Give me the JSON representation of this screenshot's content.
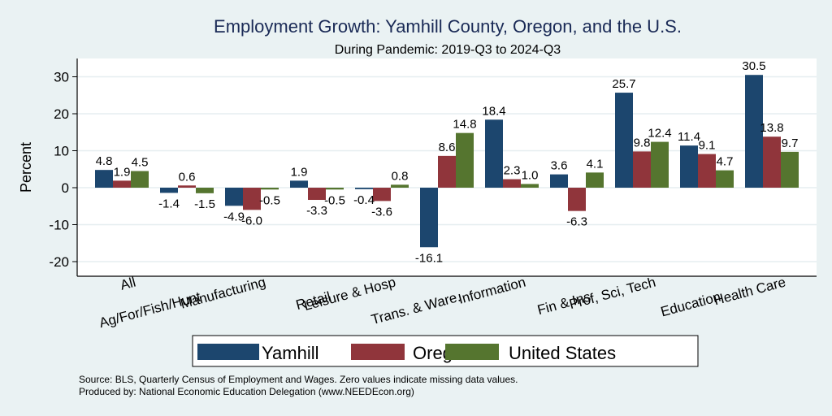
{
  "chart_data": {
    "type": "bar",
    "title": "Employment Growth: Yamhill County, Oregon, and the U.S.",
    "subtitle": "During Pandemic: 2019-Q3 to 2024-Q3",
    "xlabel": "",
    "ylabel": "Percent",
    "ylim": [
      -24,
      34
    ],
    "yticks": [
      -20,
      -10,
      0,
      10,
      20,
      30
    ],
    "grid": true,
    "legend_position": "bottom",
    "categories": [
      "All",
      "Ag/For/Fish/Hunt",
      "Manufacturing",
      "Retail",
      "Leisure & Hosp",
      "Trans. & Ware.",
      "Information",
      "Fin & Ins",
      "Prof, Sci, Tech",
      "Education",
      "Health Care"
    ],
    "series": [
      {
        "name": "Yamhill",
        "color": "#1c466e",
        "values": [
          4.8,
          -1.4,
          -4.9,
          1.9,
          -0.4,
          -16.1,
          18.4,
          3.6,
          25.7,
          11.4,
          30.5
        ]
      },
      {
        "name": "Oregon",
        "color": "#90353b",
        "values": [
          1.9,
          0.6,
          -6.0,
          -3.3,
          -3.6,
          8.6,
          2.3,
          -6.3,
          9.8,
          9.1,
          13.8
        ]
      },
      {
        "name": "United States",
        "color": "#55752f",
        "values": [
          4.5,
          -1.5,
          -0.5,
          -0.5,
          0.8,
          14.8,
          1.0,
          4.1,
          12.4,
          4.7,
          9.7
        ]
      }
    ],
    "notes": [
      "Source: BLS, Quarterly Census of Employment and Wages. Zero values indicate missing data values.",
      "Produced by: National Economic Education Delegation (www.NEEDEcon.org)"
    ]
  }
}
